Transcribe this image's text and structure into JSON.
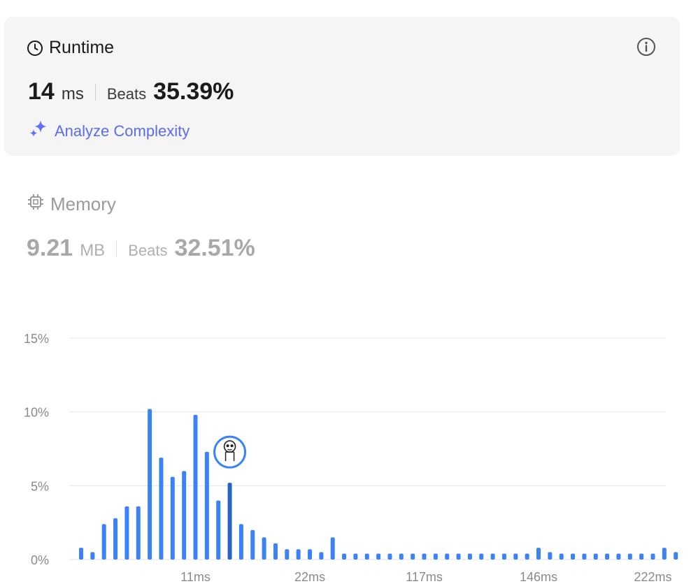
{
  "runtime": {
    "title": "Runtime",
    "value": "14",
    "unit": "ms",
    "beats_label": "Beats",
    "beats_value": "35.39%",
    "analyze_label": "Analyze Complexity"
  },
  "memory": {
    "title": "Memory",
    "value": "9.21",
    "unit": "MB",
    "beats_label": "Beats",
    "beats_value": "32.51%"
  },
  "colors": {
    "bar": "#3b82f6",
    "bar_selected": "#2563c9",
    "accent_purple": "#8b5cf6",
    "accent_blue": "#5b6cf0"
  },
  "chart_data": {
    "type": "bar",
    "ylim": [
      0,
      15
    ],
    "yticks": [
      "0%",
      "5%",
      "10%",
      "15%"
    ],
    "ytick_values": [
      0,
      5,
      10,
      15
    ],
    "xtick_labels": [
      "11ms",
      "22ms",
      "117ms",
      "146ms",
      "222ms"
    ],
    "xtick_bar_index": [
      10,
      20,
      30,
      40,
      50
    ],
    "selected_index": 13,
    "values": [
      0.8,
      0.5,
      2.4,
      2.8,
      3.6,
      3.6,
      10.2,
      6.9,
      5.6,
      6.0,
      9.8,
      7.3,
      4.0,
      5.2,
      2.4,
      2.0,
      1.5,
      1.1,
      0.7,
      0.7,
      0.7,
      0.5,
      1.5,
      0.4,
      0.4,
      0.4,
      0.4,
      0.4,
      0.4,
      0.4,
      0.4,
      0.4,
      0.4,
      0.4,
      0.4,
      0.4,
      0.4,
      0.4,
      0.4,
      0.4,
      0.8,
      0.5,
      0.4,
      0.4,
      0.4,
      0.4,
      0.4,
      0.4,
      0.4,
      0.4,
      0.4,
      0.8,
      0.5
    ]
  }
}
